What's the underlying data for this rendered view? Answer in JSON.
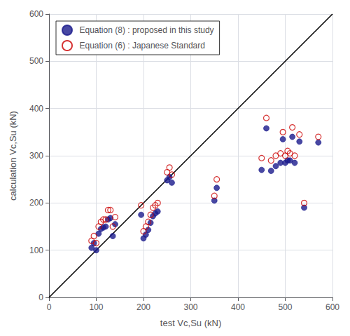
{
  "chart_data": {
    "type": "scatter",
    "xlabel": "test Vc,Su (kN)",
    "ylabel": "calculation Vc,Su (kN)",
    "xlim": [
      0,
      600
    ],
    "ylim": [
      0,
      600
    ],
    "xticks": [
      0,
      100,
      200,
      300,
      400,
      500,
      600
    ],
    "yticks": [
      0,
      100,
      200,
      300,
      400,
      500,
      600
    ],
    "grid": true,
    "legend": "upper left",
    "series": [
      {
        "type": "line",
        "color": "#000000",
        "x": [
          0,
          600
        ],
        "values": [
          0,
          600
        ]
      },
      {
        "type": "scatter",
        "name": "Equation (8) : proposed in this study",
        "color": "#1a1a8c",
        "marker": "circle",
        "x": [
          90,
          95,
          100,
          105,
          110,
          115,
          120,
          125,
          130,
          135,
          140,
          195,
          200,
          205,
          210,
          215,
          220,
          225,
          230,
          250,
          255,
          260,
          350,
          355,
          450,
          460,
          470,
          480,
          490,
          495,
          500,
          505,
          510,
          515,
          520,
          530,
          540,
          570
        ],
        "values": [
          105,
          115,
          100,
          135,
          145,
          148,
          150,
          165,
          168,
          130,
          155,
          175,
          125,
          133,
          143,
          158,
          172,
          178,
          182,
          248,
          255,
          243,
          205,
          232,
          270,
          358,
          268,
          278,
          285,
          335,
          285,
          290,
          290,
          340,
          285,
          330,
          190,
          328
        ]
      },
      {
        "type": "scatter",
        "name": "Equation (6) : Japanese Standard",
        "color": "#cc0000",
        "marker": "open circle",
        "x": [
          90,
          95,
          100,
          105,
          110,
          115,
          120,
          125,
          130,
          135,
          140,
          195,
          200,
          205,
          210,
          215,
          220,
          225,
          230,
          250,
          255,
          260,
          350,
          355,
          450,
          460,
          470,
          480,
          490,
          495,
          500,
          505,
          510,
          515,
          520,
          530,
          540,
          570
        ],
        "values": [
          120,
          130,
          115,
          150,
          160,
          165,
          165,
          185,
          185,
          150,
          170,
          195,
          140,
          150,
          160,
          175,
          190,
          195,
          200,
          265,
          275,
          260,
          215,
          250,
          295,
          380,
          290,
          300,
          305,
          350,
          300,
          310,
          305,
          360,
          300,
          345,
          200,
          340
        ]
      }
    ]
  }
}
